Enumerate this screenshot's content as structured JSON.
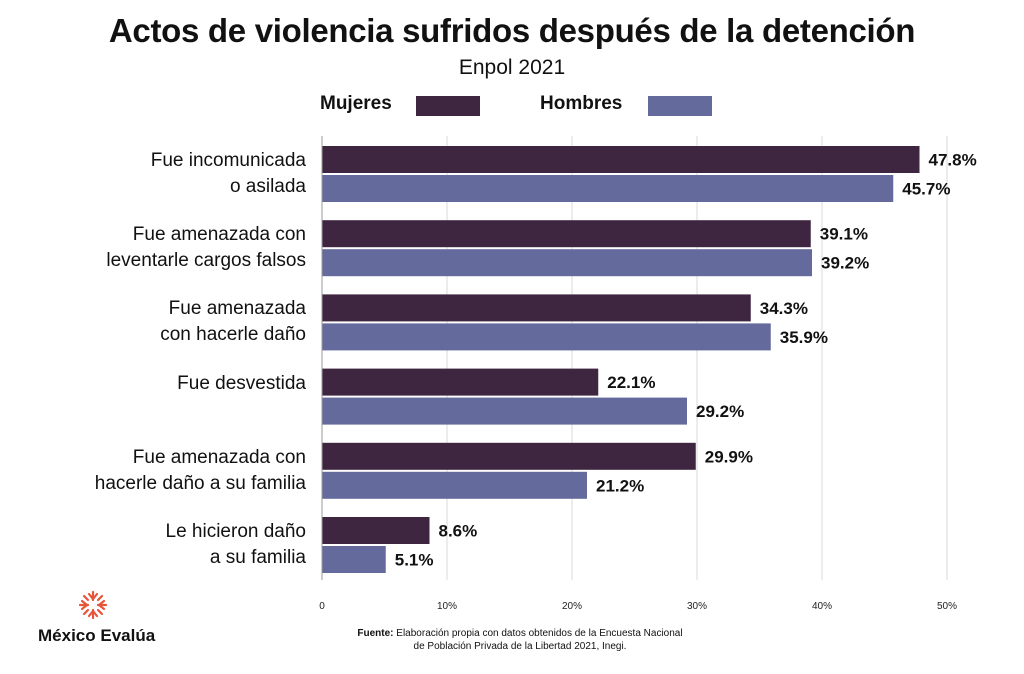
{
  "title": "Actos de violencia sufridos después de la detención",
  "subtitle": "Enpol 2021",
  "legend": [
    {
      "label": "Mujeres",
      "color": "#3f2640"
    },
    {
      "label": "Hombres",
      "color": "#646a9c"
    }
  ],
  "chart_data": {
    "type": "bar",
    "orientation": "horizontal",
    "title": "Actos de violencia sufridos después de la detención",
    "subtitle": "Enpol 2021",
    "categories": [
      [
        "Fue incomunicada",
        "o asilada"
      ],
      [
        "Fue amenazada con",
        "leventarle cargos falsos"
      ],
      [
        "Fue amenazada",
        "con hacerle daño"
      ],
      [
        "Fue desvestida"
      ],
      [
        "Fue amenazada con",
        "hacerle daño a su familia"
      ],
      [
        "Le hicieron daño",
        "a su familia"
      ]
    ],
    "series": [
      {
        "name": "Mujeres",
        "color": "#3f2640",
        "values": [
          47.8,
          39.1,
          34.3,
          22.1,
          29.9,
          8.6
        ]
      },
      {
        "name": "Hombres",
        "color": "#646a9c",
        "values": [
          45.7,
          39.2,
          35.9,
          29.2,
          21.2,
          5.1
        ]
      }
    ],
    "xlim": [
      0,
      50
    ],
    "xticks": [
      0,
      10,
      20,
      30,
      40,
      50
    ],
    "xtick_labels": [
      "0",
      "10%",
      "20%",
      "30%",
      "40%",
      "50%"
    ],
    "value_suffix": "%",
    "grid": true,
    "legend_position": "top"
  },
  "source_label": "Fuente:",
  "source_text_1": "Elaboración propia con datos obtenidos de la Encuesta Nacional",
  "source_text_2": "de Población Privada de la Libertad 2021, Inegi.",
  "logo_text": "México Evalúa"
}
